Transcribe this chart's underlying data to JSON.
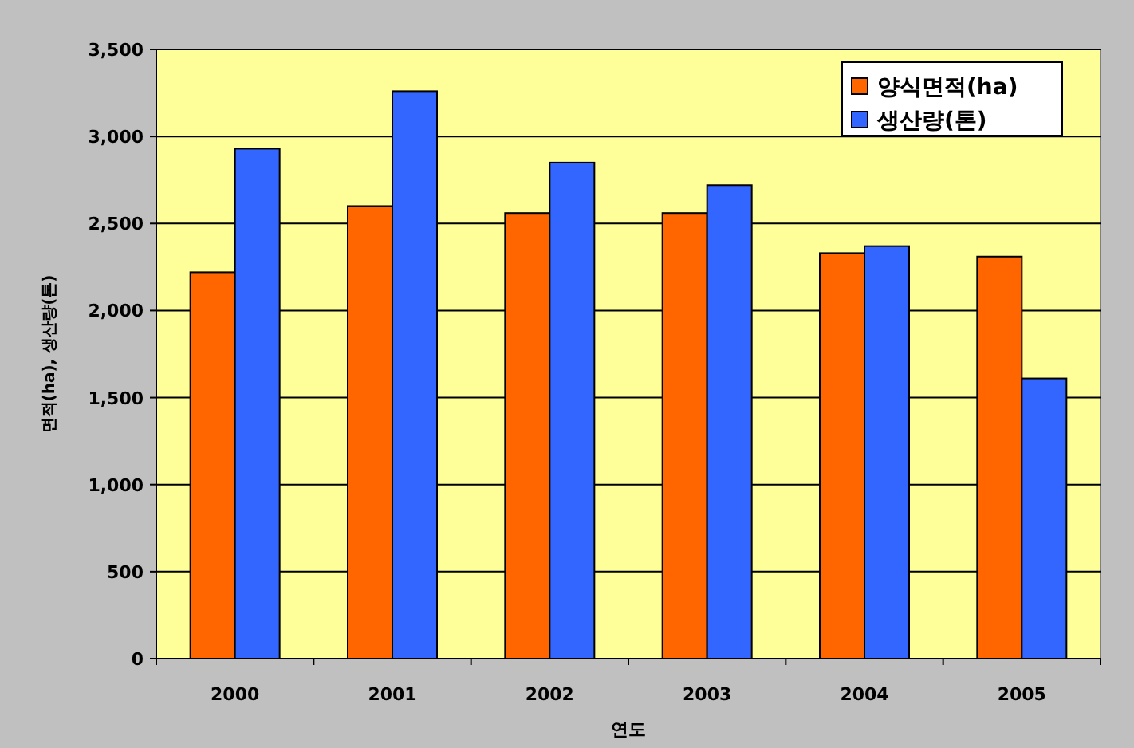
{
  "chart_data": {
    "type": "bar",
    "xlabel": "연도",
    "ylabel": "면적(ha), 생산량(톤)",
    "categories": [
      "2000",
      "2001",
      "2002",
      "2003",
      "2004",
      "2005"
    ],
    "series": [
      {
        "name": "양식면적(ha)",
        "color": "#ff6600",
        "values": [
          2220,
          2600,
          2560,
          2560,
          2330,
          2310
        ]
      },
      {
        "name": "생산량(톤)",
        "color": "#3366ff",
        "values": [
          2930,
          3260,
          2850,
          2720,
          2370,
          1610
        ]
      }
    ],
    "ylim": [
      0,
      3500
    ],
    "yticks": [
      {
        "value": 0,
        "label": "0"
      },
      {
        "value": 500,
        "label": "500"
      },
      {
        "value": 1000,
        "label": "1,000"
      },
      {
        "value": 1500,
        "label": "1,500"
      },
      {
        "value": 2000,
        "label": "2,000"
      },
      {
        "value": 2500,
        "label": "2,500"
      },
      {
        "value": 3000,
        "label": "3,000"
      },
      {
        "value": 3500,
        "label": "3,500"
      }
    ],
    "grid": "y",
    "legend": "top right"
  }
}
